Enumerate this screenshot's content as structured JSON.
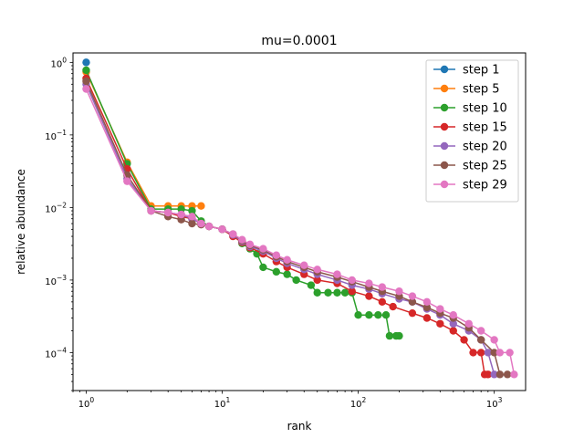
{
  "chart_data": {
    "type": "line",
    "title": "mu=0.0001",
    "xlabel": "rank",
    "ylabel": "relative abundance",
    "xscale": "log",
    "yscale": "log",
    "xlim": [
      0.8,
      1700
    ],
    "ylim": [
      3e-05,
      1.35
    ],
    "x_ticks": [
      {
        "value": 1,
        "base": "10",
        "exp": "0"
      },
      {
        "value": 10,
        "base": "10",
        "exp": "1"
      },
      {
        "value": 100,
        "base": "10",
        "exp": "2"
      },
      {
        "value": 1000,
        "base": "10",
        "exp": "3"
      }
    ],
    "y_ticks": [
      {
        "value": 0.0001,
        "base": "10",
        "exp": "−4"
      },
      {
        "value": 0.001,
        "base": "10",
        "exp": "−3"
      },
      {
        "value": 0.01,
        "base": "10",
        "exp": "−2"
      },
      {
        "value": 0.1,
        "base": "10",
        "exp": "−1"
      },
      {
        "value": 1,
        "base": "10",
        "exp": "0"
      }
    ],
    "grid": false,
    "legend_position": "top-right",
    "marker": "circle",
    "series": [
      {
        "name": "step 1",
        "color": "#1f77b4",
        "points": [
          [
            1,
            1.0
          ]
        ]
      },
      {
        "name": "step 5",
        "color": "#ff7f0e",
        "points": [
          [
            1,
            0.74
          ],
          [
            2,
            0.042
          ],
          [
            3,
            0.0105
          ],
          [
            4,
            0.0105
          ],
          [
            5,
            0.0105
          ],
          [
            6,
            0.0105
          ],
          [
            7,
            0.0105
          ]
        ]
      },
      {
        "name": "step 10",
        "color": "#2ca02c",
        "points": [
          [
            1,
            0.78
          ],
          [
            2,
            0.04
          ],
          [
            3,
            0.0095
          ],
          [
            4,
            0.0095
          ],
          [
            5,
            0.0095
          ],
          [
            6,
            0.009
          ],
          [
            7,
            0.0065
          ],
          [
            8,
            0.0055
          ],
          [
            10,
            0.005
          ],
          [
            12,
            0.0042
          ],
          [
            14,
            0.0032
          ],
          [
            16,
            0.0027
          ],
          [
            18,
            0.0023
          ],
          [
            20,
            0.0015
          ],
          [
            25,
            0.0013
          ],
          [
            30,
            0.0012
          ],
          [
            35,
            0.001
          ],
          [
            45,
            0.00085
          ],
          [
            50,
            0.00067
          ],
          [
            60,
            0.00067
          ],
          [
            70,
            0.00067
          ],
          [
            80,
            0.00067
          ],
          [
            90,
            0.00067
          ],
          [
            100,
            0.00033
          ],
          [
            120,
            0.00033
          ],
          [
            140,
            0.00033
          ],
          [
            160,
            0.00033
          ],
          [
            170,
            0.00017
          ],
          [
            190,
            0.00017
          ],
          [
            200,
            0.00017
          ]
        ]
      },
      {
        "name": "step 15",
        "color": "#d62728",
        "points": [
          [
            1,
            0.6
          ],
          [
            2,
            0.034
          ],
          [
            3,
            0.009
          ],
          [
            4,
            0.0085
          ],
          [
            5,
            0.0075
          ],
          [
            6,
            0.007
          ],
          [
            7,
            0.006
          ],
          [
            8,
            0.0055
          ],
          [
            10,
            0.005
          ],
          [
            12,
            0.004
          ],
          [
            14,
            0.0033
          ],
          [
            16,
            0.0028
          ],
          [
            20,
            0.0023
          ],
          [
            25,
            0.0018
          ],
          [
            30,
            0.0015
          ],
          [
            40,
            0.0012
          ],
          [
            50,
            0.001
          ],
          [
            70,
            0.0009
          ],
          [
            90,
            0.0007
          ],
          [
            120,
            0.0006
          ],
          [
            150,
            0.0005
          ],
          [
            180,
            0.00043
          ],
          [
            250,
            0.00035
          ],
          [
            320,
            0.0003
          ],
          [
            400,
            0.00025
          ],
          [
            500,
            0.0002
          ],
          [
            600,
            0.00015
          ],
          [
            700,
            0.0001
          ],
          [
            800,
            0.0001
          ],
          [
            850,
            5e-05
          ],
          [
            900,
            5e-05
          ]
        ]
      },
      {
        "name": "step 20",
        "color": "#9467bd",
        "points": [
          [
            1,
            0.5
          ],
          [
            2,
            0.025
          ],
          [
            3,
            0.009
          ],
          [
            4,
            0.0085
          ],
          [
            5,
            0.008
          ],
          [
            6,
            0.007
          ],
          [
            7,
            0.006
          ],
          [
            8,
            0.0055
          ],
          [
            10,
            0.005
          ],
          [
            12,
            0.0042
          ],
          [
            14,
            0.0034
          ],
          [
            16,
            0.0029
          ],
          [
            20,
            0.0025
          ],
          [
            25,
            0.002
          ],
          [
            30,
            0.0017
          ],
          [
            40,
            0.0014
          ],
          [
            50,
            0.0012
          ],
          [
            70,
            0.001
          ],
          [
            90,
            0.00085
          ],
          [
            120,
            0.00075
          ],
          [
            150,
            0.00065
          ],
          [
            200,
            0.00055
          ],
          [
            250,
            0.0005
          ],
          [
            320,
            0.0004
          ],
          [
            400,
            0.00033
          ],
          [
            500,
            0.00025
          ],
          [
            650,
            0.0002
          ],
          [
            800,
            0.00015
          ],
          [
            900,
            0.0001
          ],
          [
            1000,
            5e-05
          ]
        ]
      },
      {
        "name": "step 25",
        "color": "#8c564b",
        "points": [
          [
            1,
            0.55
          ],
          [
            2,
            0.028
          ],
          [
            3,
            0.009
          ],
          [
            4,
            0.0075
          ],
          [
            5,
            0.0068
          ],
          [
            6,
            0.006
          ],
          [
            7,
            0.0058
          ],
          [
            8,
            0.0055
          ],
          [
            10,
            0.005
          ],
          [
            12,
            0.0043
          ],
          [
            14,
            0.0035
          ],
          [
            16,
            0.003
          ],
          [
            20,
            0.0026
          ],
          [
            25,
            0.0021
          ],
          [
            30,
            0.0018
          ],
          [
            40,
            0.0015
          ],
          [
            50,
            0.0013
          ],
          [
            70,
            0.0011
          ],
          [
            90,
            0.00095
          ],
          [
            120,
            0.0008
          ],
          [
            150,
            0.0007
          ],
          [
            200,
            0.0006
          ],
          [
            250,
            0.0005
          ],
          [
            320,
            0.00042
          ],
          [
            400,
            0.00035
          ],
          [
            500,
            0.0003
          ],
          [
            650,
            0.00022
          ],
          [
            800,
            0.00015
          ],
          [
            1000,
            0.0001
          ],
          [
            1100,
            5e-05
          ],
          [
            1250,
            5e-05
          ]
        ]
      },
      {
        "name": "step 29",
        "color": "#e377c2",
        "points": [
          [
            1,
            0.43
          ],
          [
            2,
            0.023
          ],
          [
            3,
            0.009
          ],
          [
            4,
            0.0085
          ],
          [
            5,
            0.008
          ],
          [
            6,
            0.0075
          ],
          [
            7,
            0.006
          ],
          [
            8,
            0.0055
          ],
          [
            10,
            0.005
          ],
          [
            12,
            0.0043
          ],
          [
            14,
            0.0036
          ],
          [
            16,
            0.0031
          ],
          [
            20,
            0.0027
          ],
          [
            25,
            0.0022
          ],
          [
            30,
            0.0019
          ],
          [
            40,
            0.0016
          ],
          [
            50,
            0.0014
          ],
          [
            70,
            0.0012
          ],
          [
            90,
            0.001
          ],
          [
            120,
            0.0009
          ],
          [
            150,
            0.0008
          ],
          [
            200,
            0.0007
          ],
          [
            250,
            0.0006
          ],
          [
            320,
            0.0005
          ],
          [
            400,
            0.0004
          ],
          [
            500,
            0.00033
          ],
          [
            650,
            0.00025
          ],
          [
            800,
            0.0002
          ],
          [
            1000,
            0.00015
          ],
          [
            1100,
            0.0001
          ],
          [
            1300,
            0.0001
          ],
          [
            1400,
            5e-05
          ]
        ]
      }
    ]
  }
}
